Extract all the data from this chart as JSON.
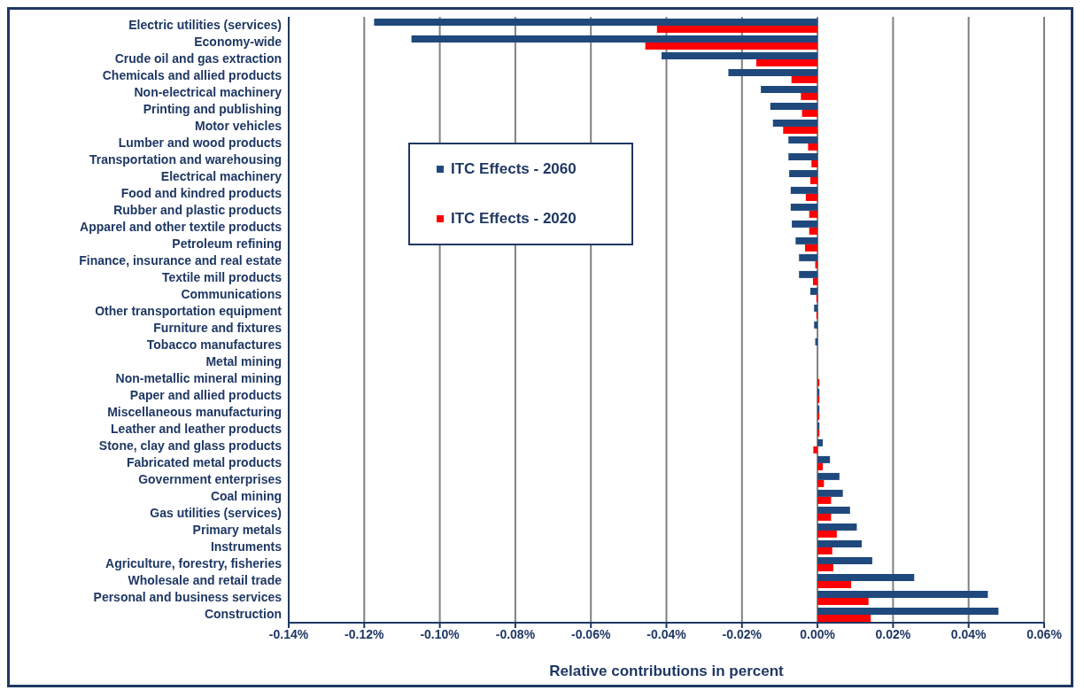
{
  "chart_data": {
    "type": "bar",
    "orientation": "horizontal",
    "xlabel": "Relative contributions in percent",
    "categories": [
      "Electric utilities (services)",
      "Economy-wide",
      "Crude oil and gas extraction",
      "Chemicals and allied products",
      "Non-electrical machinery",
      "Printing and publishing",
      "Motor vehicles",
      "Lumber and wood products",
      "Transportation and warehousing",
      "Electrical machinery",
      "Food and kindred products",
      "Rubber and plastic products",
      "Apparel and other textile products",
      "Petroleum refining",
      "Finance, insurance and real estate",
      "Textile mill products",
      "Communications",
      "Other transportation equipment",
      "Furniture and fixtures",
      "Tobacco manufactures",
      "Metal mining",
      "Non-metallic mineral mining",
      "Paper and allied products",
      "Miscellaneous manufacturing",
      "Leather and leather products",
      "Stone, clay and glass products",
      "Fabricated metal products",
      "Government enterprises",
      "Coal mining",
      "Gas utilities (services)",
      "Primary metals",
      "Instruments",
      "Agriculture, forestry, fisheries",
      "Wholesale and retail trade",
      "Personal and business services",
      "Construction"
    ],
    "series": [
      {
        "name": "ITC Effects - 2060",
        "color": "#1f497d",
        "values": [
          -0.1174,
          -0.1075,
          -0.0413,
          -0.0236,
          -0.015,
          -0.0125,
          -0.0118,
          -0.0077,
          -0.0077,
          -0.0075,
          -0.0071,
          -0.0071,
          -0.0068,
          -0.0058,
          -0.0049,
          -0.0049,
          -0.0019,
          -0.0009,
          -0.0009,
          -0.0006,
          0,
          0,
          0.0005,
          0.0005,
          0.0005,
          0.0014,
          0.0033,
          0.0058,
          0.0067,
          0.0086,
          0.0104,
          0.0117,
          0.0145,
          0.0256,
          0.0451,
          0.0479
        ]
      },
      {
        "name": "ITC Effects - 2020",
        "color": "#ff0000",
        "values": [
          -0.0425,
          -0.0456,
          -0.0162,
          -0.0069,
          -0.0044,
          -0.0041,
          -0.0091,
          -0.0025,
          -0.0016,
          -0.0019,
          -0.0031,
          -0.0022,
          -0.0022,
          -0.0033,
          -0.0006,
          -0.0012,
          -0.0003,
          -0.0003,
          0,
          0,
          0,
          0.0005,
          0.0005,
          0.0005,
          0.0005,
          -0.0011,
          0.0014,
          0.0017,
          0.0036,
          0.0036,
          0.0051,
          0.0039,
          0.0042,
          0.0089,
          0.0135,
          0.0141
        ]
      }
    ],
    "xlim": [
      -0.14,
      0.06
    ],
    "xticks": [
      {
        "value": -0.14,
        "label": "-0.14%"
      },
      {
        "value": -0.12,
        "label": "-0.12%"
      },
      {
        "value": -0.1,
        "label": "-0.10%"
      },
      {
        "value": -0.08,
        "label": "-0.08%"
      },
      {
        "value": -0.06,
        "label": "-0.06%"
      },
      {
        "value": -0.04,
        "label": "-0.04%"
      },
      {
        "value": -0.02,
        "label": "-0.02%"
      },
      {
        "value": 0,
        "label": "0.00%"
      },
      {
        "value": 0.02,
        "label": "0.02%"
      },
      {
        "value": 0.04,
        "label": "0.04%"
      },
      {
        "value": 0.06,
        "label": "0.06%"
      }
    ],
    "grid": "x",
    "legend": "top left"
  }
}
